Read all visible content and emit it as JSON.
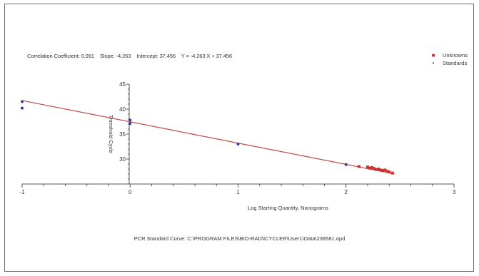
{
  "stats": {
    "correlation": "Correlation Coefficient: 0.991",
    "slope": "Slope: -4.263",
    "intercept": "Intercept: 37.456",
    "equation": "Y = -4.263 X + 37.456"
  },
  "legend": [
    {
      "label": "Unknowns",
      "color": "#d03030"
    },
    {
      "label": "Standards",
      "color": "#3a3a9a"
    }
  ],
  "caption": "PCR Standard Curve: C:\\PROGRAM FILES\\BIO-RAD\\ICYCLER\\User1\\Data\\238581.opd",
  "chart_data": {
    "type": "scatter",
    "xlabel": "Log Starting Quantity, Nanograms",
    "ylabel": "Threshold Cycle",
    "xlim": [
      -1,
      3
    ],
    "ylim": [
      25,
      45
    ],
    "x_ticks": [
      -1,
      0,
      1,
      2,
      3
    ],
    "y_ticks": [
      30,
      35,
      40,
      45
    ],
    "y_tick_labels": [
      "30",
      "35",
      "40",
      "45"
    ],
    "grid": false,
    "legend_position": "top-right",
    "fit_line": {
      "slope": -4.263,
      "intercept": 37.456,
      "x_range": [
        -1,
        2.45
      ]
    },
    "series": [
      {
        "name": "Standards",
        "color": "#3a3a9a",
        "points": [
          [
            -1,
            41.5
          ],
          [
            -1,
            40.2
          ],
          [
            0,
            37.8
          ],
          [
            0,
            37.1
          ],
          [
            1,
            33.0
          ],
          [
            2,
            28.9
          ]
        ]
      },
      {
        "name": "Unknowns",
        "color": "#d03030",
        "points": [
          [
            2.12,
            28.5
          ],
          [
            2.2,
            28.4
          ],
          [
            2.22,
            28.2
          ],
          [
            2.24,
            28.3
          ],
          [
            2.26,
            28.1
          ],
          [
            2.28,
            27.9
          ],
          [
            2.3,
            28.0
          ],
          [
            2.32,
            27.8
          ],
          [
            2.34,
            27.7
          ],
          [
            2.36,
            27.8
          ],
          [
            2.38,
            27.6
          ],
          [
            2.4,
            27.4
          ],
          [
            2.43,
            27.2
          ]
        ]
      }
    ]
  }
}
